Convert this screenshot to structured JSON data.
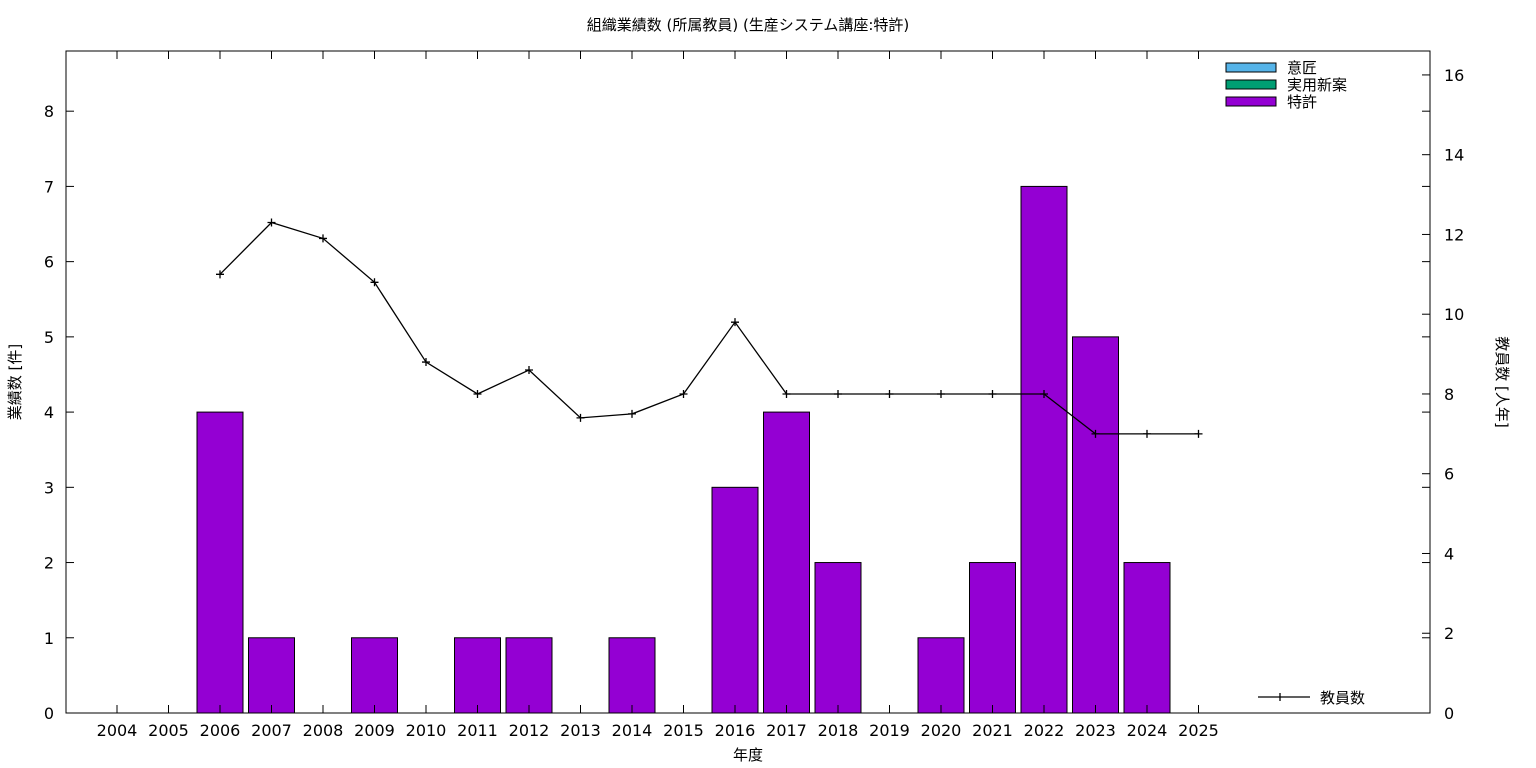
{
  "chart_data": {
    "type": "bar",
    "title": "組織業績数 (所属教員) (生産システム講座:特許)",
    "xlabel": "年度",
    "ylabel": "業績数 [件]",
    "y2label": "教員数 [人年]",
    "categories": [
      "2004",
      "2005",
      "2006",
      "2007",
      "2008",
      "2009",
      "2010",
      "2011",
      "2012",
      "2013",
      "2014",
      "2015",
      "2016",
      "2017",
      "2018",
      "2019",
      "2020",
      "2021",
      "2022",
      "2023",
      "2024",
      "2025"
    ],
    "ylim": [
      0,
      8.8
    ],
    "y2lim": [
      0,
      16.6
    ],
    "yticks": [
      0,
      1,
      2,
      3,
      4,
      5,
      6,
      7,
      8
    ],
    "y2ticks": [
      0,
      2,
      4,
      6,
      8,
      10,
      12,
      14,
      16
    ],
    "grid": false,
    "legend_position": "top-right",
    "series": [
      {
        "name": "意匠",
        "kind": "bar",
        "color": "#56b4e9",
        "values": [
          0,
          0,
          0,
          0,
          0,
          0,
          0,
          0,
          0,
          0,
          0,
          0,
          0,
          0,
          0,
          0,
          0,
          0,
          0,
          0,
          0,
          0
        ]
      },
      {
        "name": "実用新案",
        "kind": "bar",
        "color": "#009e73",
        "values": [
          0,
          0,
          0,
          0,
          0,
          0,
          0,
          0,
          0,
          0,
          0,
          0,
          0,
          0,
          0,
          0,
          0,
          0,
          0,
          0,
          0,
          0
        ]
      },
      {
        "name": "特許",
        "kind": "bar",
        "color": "#9400d3",
        "values": [
          0,
          0,
          4,
          1,
          0,
          1,
          0,
          1,
          1,
          0,
          1,
          0,
          3,
          4,
          2,
          0,
          1,
          2,
          7,
          5,
          2,
          0
        ]
      },
      {
        "name": "教員数",
        "kind": "line",
        "axis": "y2",
        "color": "#000000",
        "values": [
          null,
          null,
          11.0,
          12.3,
          11.9,
          10.8,
          8.8,
          8.0,
          8.6,
          7.4,
          7.5,
          8.0,
          9.8,
          8.0,
          8.0,
          8.0,
          8.0,
          8.0,
          8.0,
          7.0,
          7.0,
          7.0
        ]
      }
    ]
  }
}
